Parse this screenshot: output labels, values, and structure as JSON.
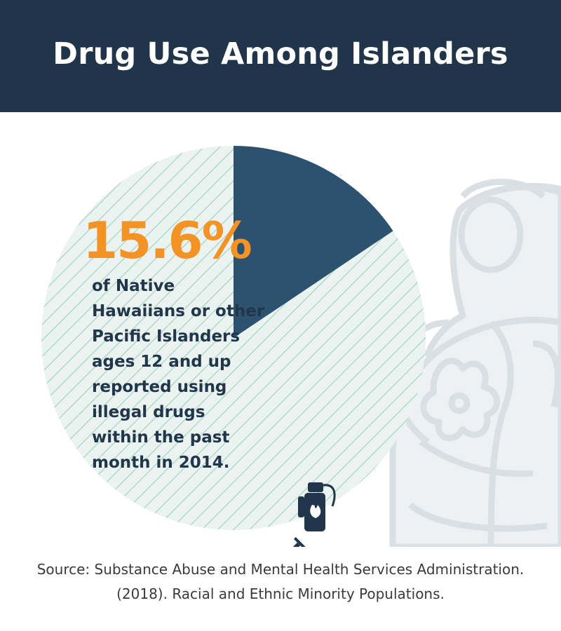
{
  "header": {
    "title": "Drug Use Among Islanders"
  },
  "stat": {
    "value": "15.6%",
    "description": "of Native Hawaiians or other Pacific Islanders ages 12 and up reported using illegal drugs within the past month in 2014."
  },
  "source": {
    "line1": "Source: Substance Abuse and Mental Health Services Administration.",
    "line2": "(2018). Racial and Ethnic Minority Populations."
  },
  "icons": [
    "lighter-icon",
    "syringe-icon",
    "razor-blade-icon",
    "islander-woman-illustration"
  ],
  "colors": {
    "header_bg": "#21354a",
    "slice": "#2d5270",
    "remainder_fill": "#eaf3ef",
    "remainder_stripe": "#a9d3c4",
    "accent": "#f39325",
    "text_dark": "#22364b",
    "figure": "#dfe3e7"
  },
  "chart_data": {
    "type": "pie",
    "slices": [
      {
        "value": 15.6,
        "color": "#2d5270"
      },
      {
        "value": 84.4,
        "color": "#eaf3ef"
      }
    ]
  }
}
